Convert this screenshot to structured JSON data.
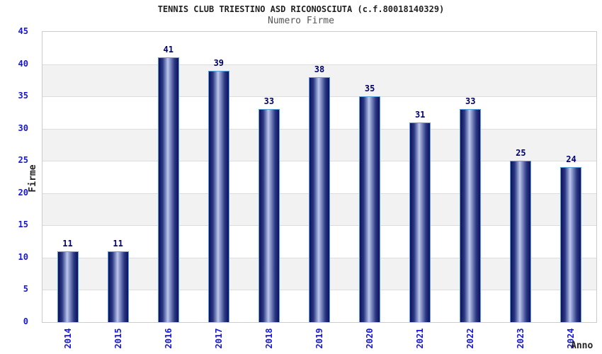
{
  "chart_data": {
    "type": "bar",
    "title": "TENNIS CLUB TRIESTINO ASD RICONOSCIUTA (c.f.80018140329)",
    "subtitle": "Numero Firme",
    "xlabel": "Anno",
    "ylabel": "Firme",
    "categories": [
      "2014",
      "2015",
      "2016",
      "2017",
      "2018",
      "2019",
      "2020",
      "2021",
      "2022",
      "2023",
      "2024"
    ],
    "values": [
      11,
      11,
      41,
      39,
      33,
      38,
      35,
      31,
      33,
      25,
      24
    ],
    "ylim": [
      0,
      45
    ],
    "ytick_step": 5,
    "grid": true,
    "legend": "none",
    "colors": {
      "axis_tick_label": "#1515dd",
      "bar_value_label": "#00006a",
      "bar_edge_dark": "#0e1160",
      "bar_mid": "#2a3781",
      "bar_highlight": "#bfc8ea",
      "bar_border": "#5aa3de",
      "band_alt": "#f2f2f2",
      "gridline": "#dddddd",
      "plot_border": "#cccccc",
      "title": "#222222",
      "subtitle": "#555555",
      "axis_title": "#222222"
    }
  }
}
